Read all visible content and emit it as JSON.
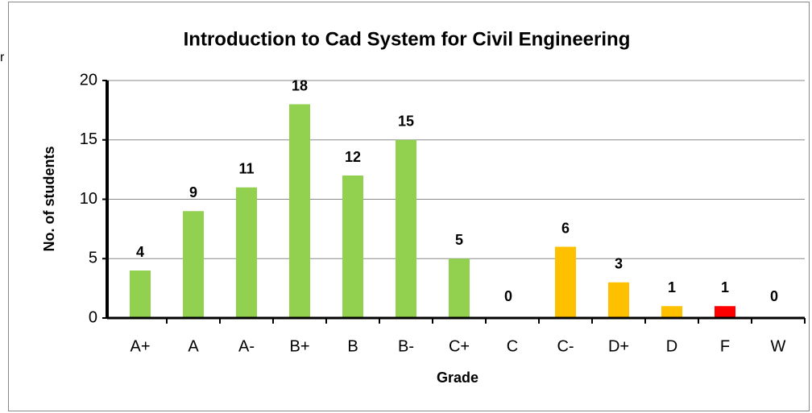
{
  "chart_data": {
    "type": "bar",
    "title": "Introduction to Cad System for Civil Engineering",
    "side_text": "r",
    "x_label": "Grade",
    "y_label": "No. of students",
    "categories": [
      "A+",
      "A",
      "A-",
      "B+",
      "B",
      "B-",
      "C+",
      "C",
      "C-",
      "D+",
      "D",
      "F",
      "W"
    ],
    "values": [
      4,
      9,
      11,
      18,
      12,
      15,
      5,
      0,
      6,
      3,
      1,
      1,
      0
    ],
    "colors": [
      "#92d050",
      "#92d050",
      "#92d050",
      "#92d050",
      "#92d050",
      "#92d050",
      "#92d050",
      "#92d050",
      "#ffc000",
      "#ffc000",
      "#ffc000",
      "#ff0000",
      "#ff0000"
    ],
    "ylim": [
      0,
      20
    ],
    "yticks": [
      0,
      5,
      10,
      15,
      20
    ],
    "grid": true
  }
}
